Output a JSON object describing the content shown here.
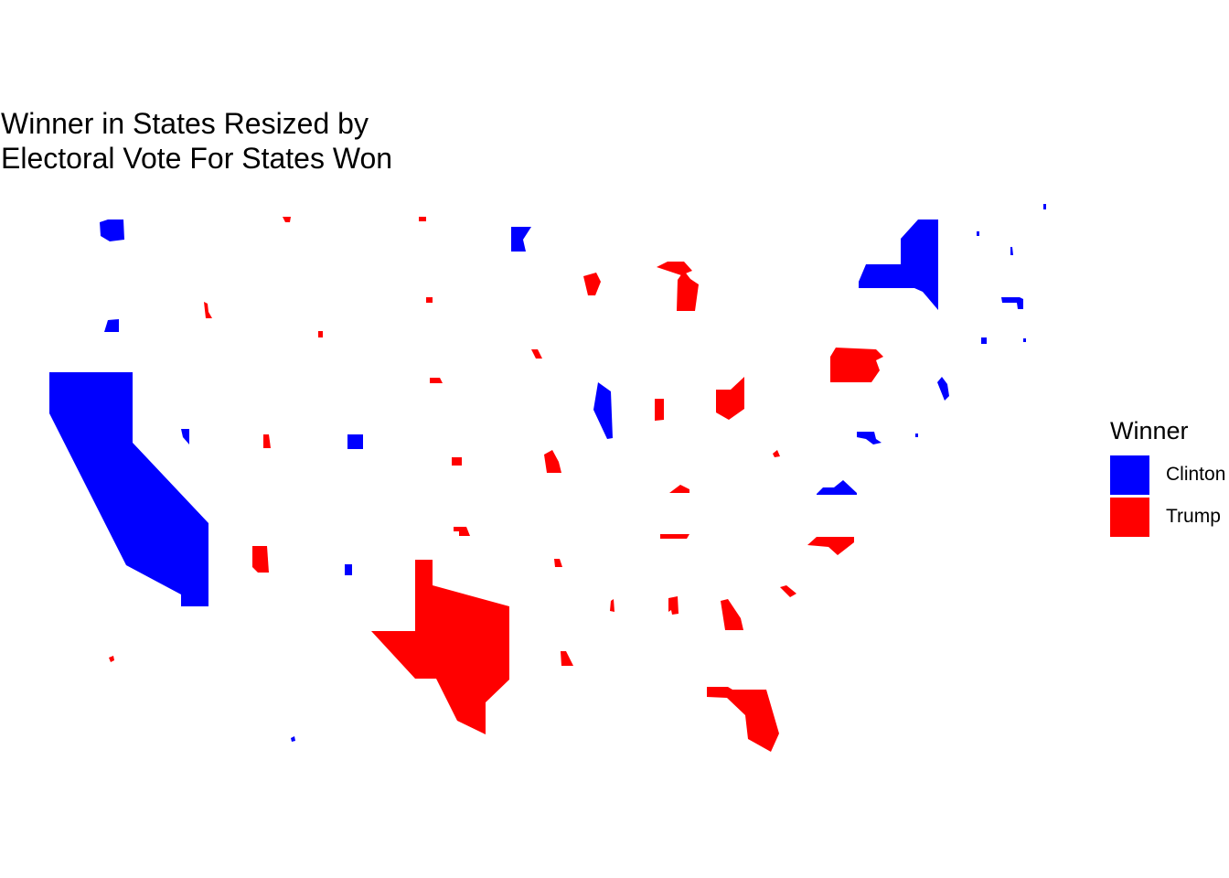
{
  "title": {
    "line1": "Winner in States Resized by",
    "line2": "Electoral Vote For States Won"
  },
  "legend": {
    "title": "Winner",
    "items": [
      {
        "label": "Clinton",
        "color": "#0000ff"
      },
      {
        "label": "Trump",
        "color": "#ff0000"
      }
    ]
  },
  "colors": {
    "clinton": "#0000ff",
    "trump": "#ff0000",
    "background": "#ffffff"
  },
  "map": {
    "type": "cartogram",
    "description_of_encoding": "state fill = winner; state area scaled by electoral votes won"
  }
}
